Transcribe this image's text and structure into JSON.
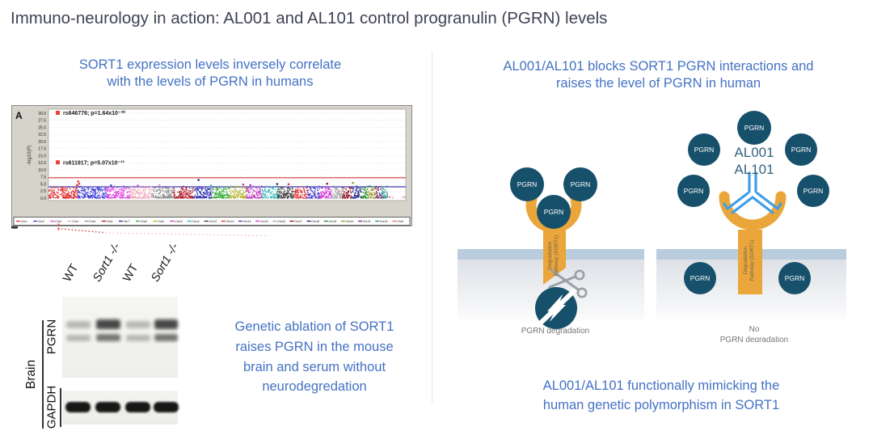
{
  "title": "Immuno-neurology in action: AL001 and AL101 control progranulin (PGRN) levels",
  "left_panel": {
    "heading": "SORT1 expression levels inversely correlate\nwith the levels of PGRN in humans",
    "caption": "Genetic ablation of SORT1\nraises PGRN in the mouse\nbrain and serum without\nneurodegredation",
    "blot": {
      "group_label": "Brain",
      "row_labels": [
        "PGRN",
        "GAPDH"
      ],
      "lane_labels": [
        "WT",
        "Sort1 -/-",
        "WT",
        "Sort1 -/-"
      ]
    }
  },
  "right_panel": {
    "heading": "AL001/AL101 blocks SORT1 PGRN interactions and\nraises the level of PGRN in human",
    "footer": "AL001/AL101 functionally mimicking the\nhuman genetic polymorphism in SORT1",
    "pgrn_label": "PGRN",
    "receptor": {
      "line1": "Degradation",
      "line2": "Pathway (SORT1)"
    },
    "no_drug": {
      "caption": "PGRN degradation"
    },
    "drug": {
      "label_line1": "AL001",
      "label_line2": "AL101",
      "caption_line1": "No",
      "caption_line2": "PGRN degradation"
    }
  },
  "colors": {
    "accent_blue": "#4472C4",
    "title_gray": "#3F4254",
    "pgrn_circle": "#17506B",
    "receptor_gold": "#EAA63A",
    "antibody_blue": "#3F9EE8",
    "membrane": "#B9CDDE",
    "drug_label": "#35637F",
    "caption_gray": "#767676"
  },
  "chart_data": {
    "type": "scatter",
    "subtype": "manhattan-gwas",
    "panel_label": "A",
    "ylabel": "-log10(P)",
    "ylim": [
      0,
      31.5
    ],
    "yticks": [
      30.0,
      27.5,
      25.0,
      22.5,
      20.0,
      17.5,
      15.0,
      12.5,
      10.0,
      7.5,
      5.0,
      2.5,
      0.0
    ],
    "grid": "dotted-horizontal",
    "genomewide_line": {
      "y": 7.2,
      "color": "#cf3a3a"
    },
    "suggestive_line": {
      "y": 4.0,
      "color": "#3a3ab0"
    },
    "annotations": [
      {
        "label": "rs646776; p=1.64x10⁻³⁰",
        "y": 30.0,
        "marker_color": "#e8433a"
      },
      {
        "label": "rs611917; p=5.07x10⁻¹³",
        "y": 12.5,
        "marker_color": "#e8433a"
      }
    ],
    "chromosomes": [
      {
        "name": "Chr1",
        "color": "#e03535",
        "weight": 249
      },
      {
        "name": "Chr2",
        "color": "#4343d8",
        "weight": 243
      },
      {
        "name": "Chr3",
        "color": "#e046e0",
        "weight": 198
      },
      {
        "name": "Chr4",
        "color": "#f2a9bd",
        "weight": 191
      },
      {
        "name": "Chr5",
        "color": "#8f8f8f",
        "weight": 181
      },
      {
        "name": "Chr6",
        "color": "#b01828",
        "weight": 171
      },
      {
        "name": "Chr7",
        "color": "#2d2db2",
        "weight": 159
      },
      {
        "name": "Chr8",
        "color": "#35aa35",
        "weight": 146
      },
      {
        "name": "Chr9",
        "color": "#b8b832",
        "weight": 141
      },
      {
        "name": "Chr10",
        "color": "#c03ac0",
        "weight": 136
      },
      {
        "name": "Chr11",
        "color": "#3ab8b8",
        "weight": 135
      },
      {
        "name": "Chr12",
        "color": "#383838",
        "weight": 134
      },
      {
        "name": "Chr13",
        "color": "#e03535",
        "weight": 115
      },
      {
        "name": "Chr14",
        "color": "#4a3ac8",
        "weight": 107
      },
      {
        "name": "Chr15",
        "color": "#d53ad5",
        "weight": 102
      },
      {
        "name": "Chr16",
        "color": "#a8a8a8",
        "weight": 90
      },
      {
        "name": "Chr17",
        "color": "#8f1626",
        "weight": 83
      },
      {
        "name": "Chr18",
        "color": "#28288f",
        "weight": 80
      },
      {
        "name": "Chr19",
        "color": "#2a8f2a",
        "weight": 59
      },
      {
        "name": "Chr20",
        "color": "#9a9a28",
        "weight": 64
      },
      {
        "name": "Chr21",
        "color": "#7a2a7a",
        "weight": 48
      },
      {
        "name": "Chr22",
        "color": "#2a8f8f",
        "weight": 51
      },
      {
        "name": "ChrX",
        "color": "#e87070",
        "weight": 155,
        "sparse": true
      }
    ],
    "highlight_points": [
      {
        "x_frac": 0.083,
        "y": 5.9,
        "color": "#e03535"
      },
      {
        "x_frac": 0.086,
        "y": 5.1,
        "color": "#e03535"
      },
      {
        "x_frac": 0.08,
        "y": 4.6,
        "color": "#e03535"
      },
      {
        "x_frac": 0.175,
        "y": 4.5,
        "color": "#4343d8"
      },
      {
        "x_frac": 0.25,
        "y": 4.4,
        "color": "#e046e0"
      },
      {
        "x_frac": 0.31,
        "y": 4.6,
        "color": "#f2a9bd"
      },
      {
        "x_frac": 0.42,
        "y": 6.4,
        "color": "#28288f"
      },
      {
        "x_frac": 0.455,
        "y": 4.4,
        "color": "#3ab8b8"
      },
      {
        "x_frac": 0.545,
        "y": 4.8,
        "color": "#c03ac0"
      },
      {
        "x_frac": 0.565,
        "y": 4.6,
        "color": "#c03ac0"
      },
      {
        "x_frac": 0.64,
        "y": 5.0,
        "color": "#383838"
      },
      {
        "x_frac": 0.672,
        "y": 4.9,
        "color": "#e03535"
      },
      {
        "x_frac": 0.78,
        "y": 5.1,
        "color": "#8f1626"
      },
      {
        "x_frac": 0.852,
        "y": 5.4,
        "color": "#9a9a28"
      },
      {
        "x_frac": 0.9,
        "y": 4.2,
        "color": "#2a8f8f"
      }
    ],
    "baseline_outliers": [
      {
        "x_frac": 0.935,
        "y": 0.5
      },
      {
        "x_frac": 0.955,
        "y": 0.4
      }
    ]
  }
}
